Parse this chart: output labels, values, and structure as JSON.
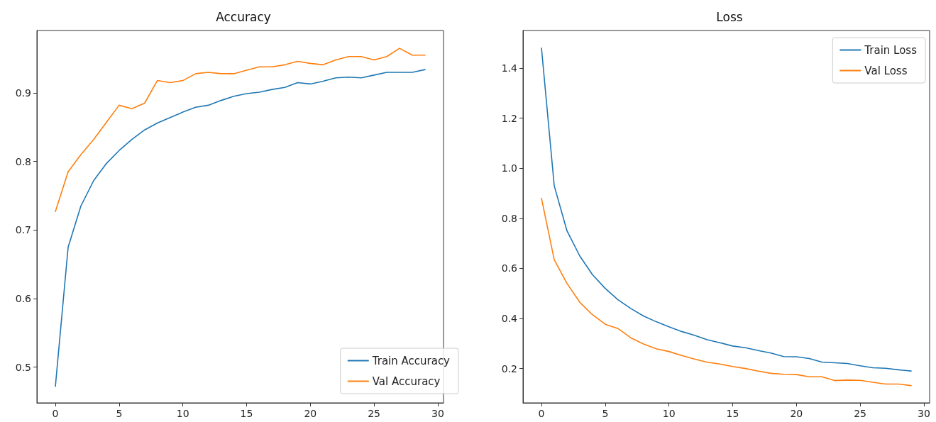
{
  "chart_data": [
    {
      "type": "line",
      "title": "Accuracy",
      "x": [
        0,
        1,
        2,
        3,
        4,
        5,
        6,
        7,
        8,
        9,
        10,
        11,
        12,
        13,
        14,
        15,
        16,
        17,
        18,
        19,
        20,
        21,
        22,
        23,
        24,
        25,
        26,
        27,
        28,
        29
      ],
      "series": [
        {
          "name": "Train Accuracy",
          "color": "#1f77b4",
          "values": [
            0.472,
            0.675,
            0.735,
            0.772,
            0.797,
            0.816,
            0.832,
            0.846,
            0.856,
            0.864,
            0.872,
            0.879,
            0.882,
            0.889,
            0.895,
            0.899,
            0.901,
            0.905,
            0.908,
            0.915,
            0.913,
            0.917,
            0.922,
            0.923,
            0.922,
            0.926,
            0.93,
            0.93,
            0.93,
            0.934
          ]
        },
        {
          "name": "Val Accuracy",
          "color": "#ff7f0e",
          "values": [
            0.727,
            0.785,
            0.81,
            0.832,
            0.857,
            0.882,
            0.877,
            0.885,
            0.918,
            0.915,
            0.918,
            0.928,
            0.93,
            0.928,
            0.928,
            0.933,
            0.938,
            0.938,
            0.941,
            0.946,
            0.943,
            0.941,
            0.948,
            0.953,
            0.953,
            0.948,
            0.953,
            0.965,
            0.955,
            0.955
          ]
        }
      ],
      "xlim": [
        -1.45,
        30.45
      ],
      "xticks": [
        0,
        5,
        10,
        15,
        20,
        25,
        30
      ],
      "ylim": [
        0.448,
        0.991
      ],
      "yticks": [
        0.5,
        0.6,
        0.7,
        0.8,
        0.9
      ],
      "legend": "bottom right",
      "grid": false,
      "marker": "none",
      "line_style": "solid"
    },
    {
      "type": "line",
      "title": "Loss",
      "x": [
        0,
        1,
        2,
        3,
        4,
        5,
        6,
        7,
        8,
        9,
        10,
        11,
        12,
        13,
        14,
        15,
        16,
        17,
        18,
        19,
        20,
        21,
        22,
        23,
        24,
        25,
        26,
        27,
        28,
        29
      ],
      "series": [
        {
          "name": "Train Loss",
          "color": "#1f77b4",
          "values": [
            1.48,
            0.93,
            0.75,
            0.65,
            0.575,
            0.52,
            0.475,
            0.44,
            0.41,
            0.387,
            0.367,
            0.348,
            0.333,
            0.315,
            0.303,
            0.29,
            0.283,
            0.272,
            0.262,
            0.248,
            0.247,
            0.24,
            0.226,
            0.223,
            0.22,
            0.211,
            0.203,
            0.201,
            0.195,
            0.19
          ]
        },
        {
          "name": "Val Loss",
          "color": "#ff7f0e",
          "values": [
            0.88,
            0.635,
            0.54,
            0.465,
            0.415,
            0.377,
            0.36,
            0.323,
            0.298,
            0.279,
            0.268,
            0.252,
            0.238,
            0.225,
            0.218,
            0.208,
            0.2,
            0.19,
            0.181,
            0.177,
            0.176,
            0.167,
            0.167,
            0.152,
            0.154,
            0.153,
            0.145,
            0.138,
            0.138,
            0.132
          ]
        }
      ],
      "xlim": [
        -1.45,
        30.45
      ],
      "xticks": [
        0,
        5,
        10,
        15,
        20,
        25,
        30
      ],
      "ylim": [
        0.063,
        1.55
      ],
      "yticks": [
        0.2,
        0.4,
        0.6,
        0.8,
        {
          "value": 1,
          "label": "1.0"
        },
        1.2,
        1.4
      ],
      "legend": "top right",
      "grid": false,
      "marker": "none",
      "line_style": "solid"
    }
  ]
}
